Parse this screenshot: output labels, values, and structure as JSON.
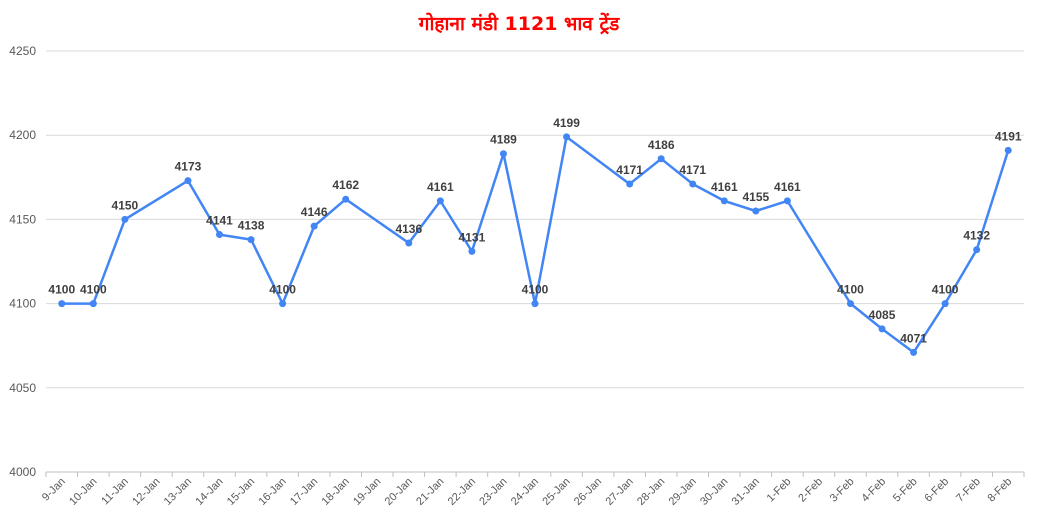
{
  "chart_data": {
    "type": "line",
    "title": "गोहाना मंडी 1121 भाव ट्रेंड",
    "xlabel": "",
    "ylabel": "",
    "ylim": [
      4000,
      4250
    ],
    "yticks": [
      "4000",
      "4050",
      "4100",
      "4150",
      "4200",
      "4250"
    ],
    "grid": true,
    "legend": "none",
    "x": [
      "9-Jan",
      "10-Jan",
      "11-Jan",
      "12-Jan",
      "13-Jan",
      "14-Jan",
      "15-Jan",
      "16-Jan",
      "17-Jan",
      "18-Jan",
      "19-Jan",
      "20-Jan",
      "21-Jan",
      "22-Jan",
      "23-Jan",
      "24-Jan",
      "25-Jan",
      "26-Jan",
      "27-Jan",
      "28-Jan",
      "29-Jan",
      "30-Jan",
      "31-Jan",
      "1-Feb",
      "2-Feb",
      "3-Feb",
      "4-Feb",
      "5-Feb",
      "6-Feb",
      "7-Feb",
      "8-Feb"
    ],
    "series": [
      {
        "values": [
          4100,
          4100,
          4150,
          null,
          4173,
          4141,
          4138,
          4100,
          4146,
          4162,
          null,
          4136,
          4161,
          4131,
          4189,
          4100,
          4199,
          null,
          4171,
          4186,
          4171,
          4161,
          4155,
          4161,
          null,
          4100,
          4085,
          4071,
          4100,
          4132,
          4191
        ],
        "labels": [
          "4100",
          "4100",
          "4150",
          null,
          "4173",
          "4141",
          "4138",
          "4100",
          "4146",
          "4162",
          null,
          "4136",
          "4161",
          "4131",
          "4189",
          "4100",
          "4199",
          null,
          "4171",
          "4186",
          "4171",
          "4161",
          "4155",
          "4161",
          null,
          "4100",
          "4085",
          "4071",
          "4100",
          "4132",
          "4191"
        ]
      }
    ],
    "colors": {
      "line": "#4285f4",
      "title": "#ff0000",
      "grid": "#d9d9d9",
      "axis": "#bfbfbf"
    }
  }
}
